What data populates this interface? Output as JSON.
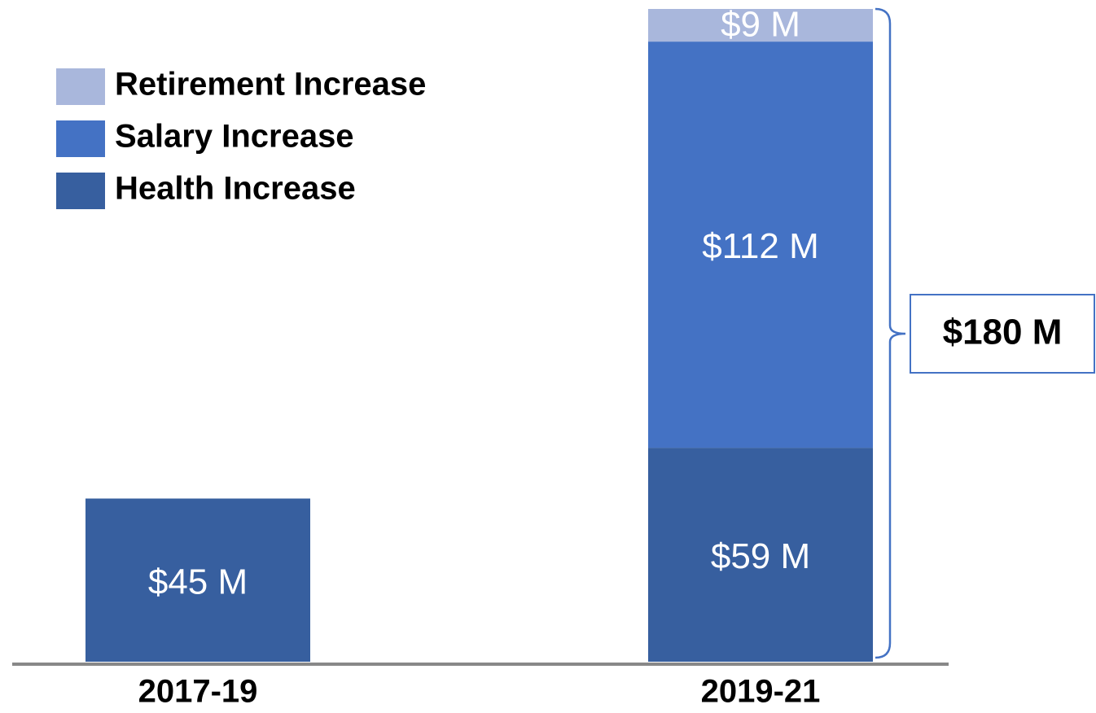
{
  "chart_data": {
    "type": "bar",
    "stacked": true,
    "categories": [
      "2017-19",
      "2019-21"
    ],
    "series": [
      {
        "name": "Health Increase",
        "color": "#375f9f",
        "values": [
          45,
          59
        ],
        "value_labels": [
          "$45 M",
          "$59 M"
        ]
      },
      {
        "name": "Salary Increase",
        "color": "#4472c4",
        "values": [
          null,
          112
        ],
        "value_labels": [
          null,
          "$112 M"
        ]
      },
      {
        "name": "Retirement Increase",
        "color": "#a9b7dc",
        "values": [
          null,
          9
        ],
        "value_labels": [
          null,
          "$9 M"
        ]
      }
    ],
    "ylim": [
      0,
      180
    ],
    "total": {
      "value": 180,
      "label": "$180 M"
    }
  }
}
